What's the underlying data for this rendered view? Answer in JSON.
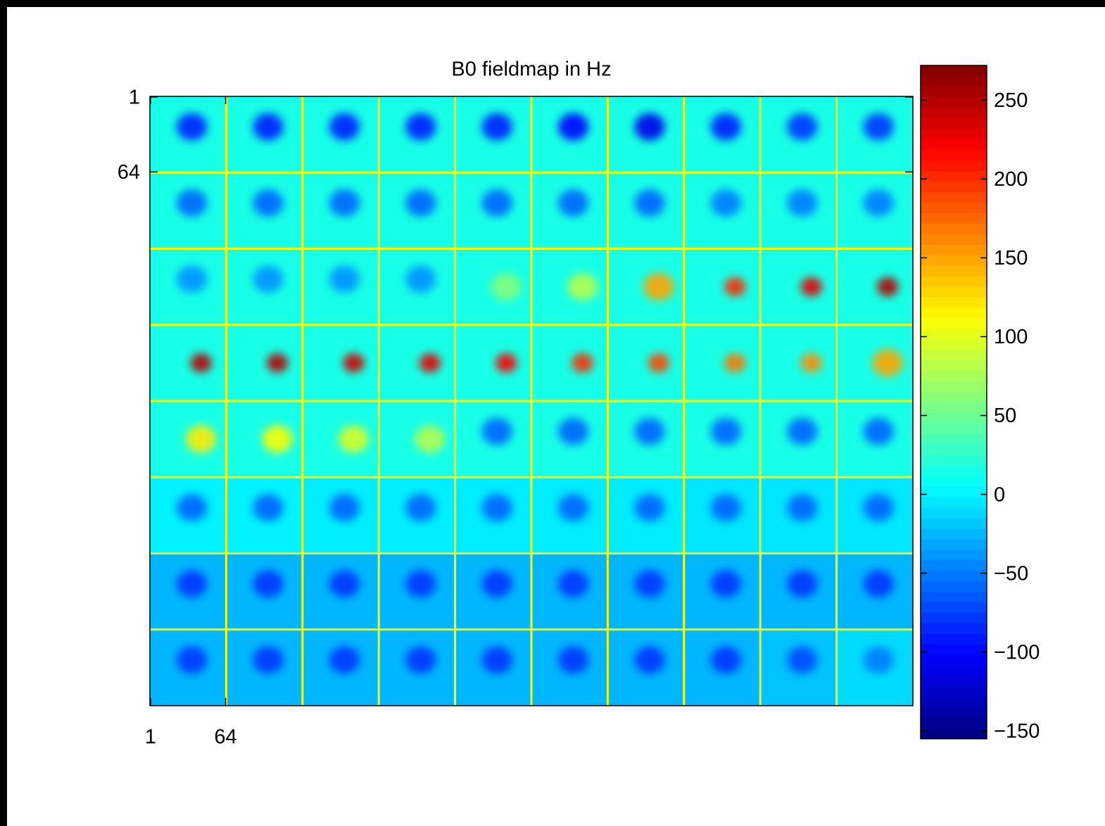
{
  "chart_data": {
    "type": "montage",
    "title": "B0 fieldmap in Hz",
    "xlim": [
      0.5,
      640.5
    ],
    "ylim": [
      0.5,
      512.5
    ],
    "xticks": [
      1,
      64
    ],
    "yticks": [
      1,
      64
    ],
    "grid_color": "#ffff00",
    "values": [
      [
        15,
        15,
        15,
        15,
        15,
        15,
        15,
        15,
        15,
        15
      ],
      [
        15,
        15,
        15,
        15,
        15,
        15,
        15,
        15,
        15,
        15
      ],
      [
        15,
        15,
        15,
        15,
        15,
        15,
        15,
        15,
        15,
        15
      ],
      [
        15,
        15,
        15,
        15,
        15,
        15,
        15,
        15,
        15,
        15
      ],
      [
        15,
        15,
        15,
        15,
        15,
        15,
        15,
        15,
        15,
        15
      ],
      [
        0,
        0,
        -2,
        -2,
        -3,
        -3,
        -3,
        -5,
        -5,
        -5
      ],
      [
        -25,
        -25,
        -25,
        -25,
        -25,
        -25,
        -25,
        -25,
        -25,
        -25
      ],
      [
        -25,
        -25,
        -25,
        -25,
        -25,
        -25,
        -25,
        -25,
        -20,
        -10
      ]
    ],
    "peaks": [
      [
        -90,
        -90,
        -90,
        -90,
        -90,
        -100,
        -110,
        -90,
        -80,
        -80
      ],
      [
        -60,
        -60,
        -60,
        -60,
        -60,
        -60,
        -60,
        -50,
        -50,
        -50
      ],
      [
        -40,
        -40,
        -40,
        -40,
        60,
        80,
        150,
        200,
        230,
        250
      ],
      [
        250,
        250,
        240,
        230,
        220,
        200,
        190,
        170,
        160,
        150
      ],
      [
        120,
        110,
        95,
        80,
        -60,
        -60,
        -60,
        -60,
        -60,
        -60
      ],
      [
        -60,
        -60,
        -60,
        -60,
        -60,
        -60,
        -60,
        -60,
        -60,
        -60
      ],
      [
        -80,
        -80,
        -80,
        -80,
        -80,
        -80,
        -80,
        -80,
        -80,
        -80
      ],
      [
        -80,
        -80,
        -80,
        -80,
        -80,
        -80,
        -80,
        -80,
        -70,
        -50
      ]
    ],
    "clim": [
      -155,
      272
    ],
    "cticks": [
      250,
      200,
      150,
      100,
      50,
      {
        "value": 0,
        "label": "0"
      },
      {
        "value": -50,
        "label": "−50"
      },
      {
        "value": -100,
        "label": "−100"
      },
      {
        "value": -150,
        "label": "−150"
      }
    ]
  }
}
